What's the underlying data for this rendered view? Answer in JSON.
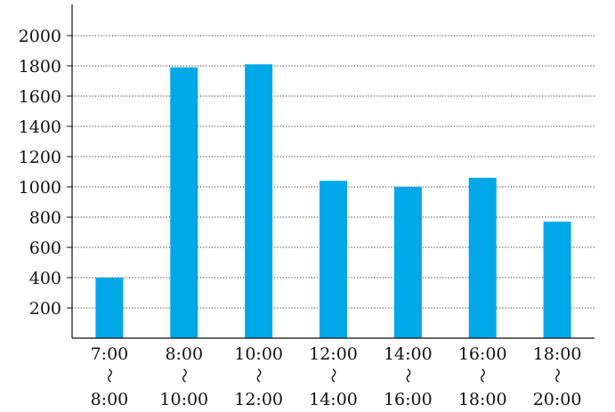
{
  "chart_data": {
    "type": "bar",
    "categories": [
      {
        "start": "7:00",
        "sep": "〜",
        "end": "8:00"
      },
      {
        "start": "8:00",
        "sep": "〜",
        "end": "10:00"
      },
      {
        "start": "10:00",
        "sep": "〜",
        "end": "12:00"
      },
      {
        "start": "12:00",
        "sep": "〜",
        "end": "14:00"
      },
      {
        "start": "14:00",
        "sep": "〜",
        "end": "16:00"
      },
      {
        "start": "16:00",
        "sep": "〜",
        "end": "18:00"
      },
      {
        "start": "18:00",
        "sep": "〜",
        "end": "20:00"
      }
    ],
    "values": [
      400,
      1790,
      1810,
      1040,
      1000,
      1060,
      770
    ],
    "yticks": [
      "200",
      "400",
      "600",
      "800",
      "1000",
      "1200",
      "1400",
      "1600",
      "1800",
      "2000"
    ],
    "ylim": [
      0,
      2200
    ],
    "grid": true,
    "bar_color": "#00a8e8",
    "title": "",
    "xlabel": "",
    "ylabel": ""
  }
}
